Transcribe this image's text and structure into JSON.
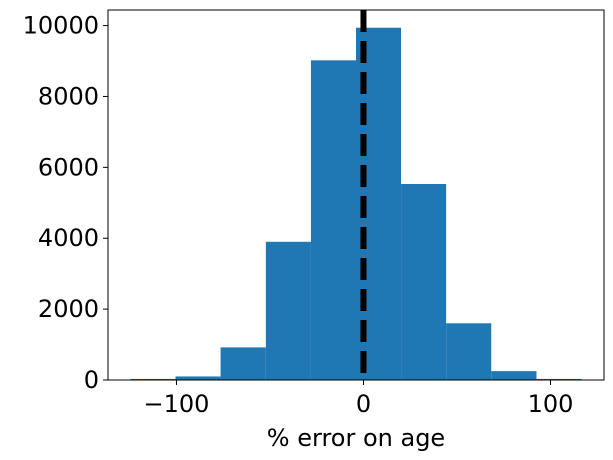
{
  "chart_data": {
    "type": "histogram",
    "x_label": "% error on age",
    "bins": [
      -124.6,
      -100.5,
      -76.4,
      -52.2,
      -28.1,
      -4.0,
      20.1,
      44.2,
      68.3,
      92.5,
      116.6
    ],
    "counts": [
      30,
      100,
      920,
      3900,
      9020,
      9940,
      5530,
      1600,
      250,
      30
    ],
    "color": "#1f77b4",
    "vline": 0,
    "vline_color": "#000000",
    "xlim": [
      -136.6,
      128.6
    ],
    "xticks": [
      {
        "value": -100,
        "label": "−100"
      },
      0,
      100
    ],
    "ylim": [
      0,
      10440
    ],
    "yticks": [
      0,
      2000,
      4000,
      6000,
      8000,
      10000
    ]
  }
}
